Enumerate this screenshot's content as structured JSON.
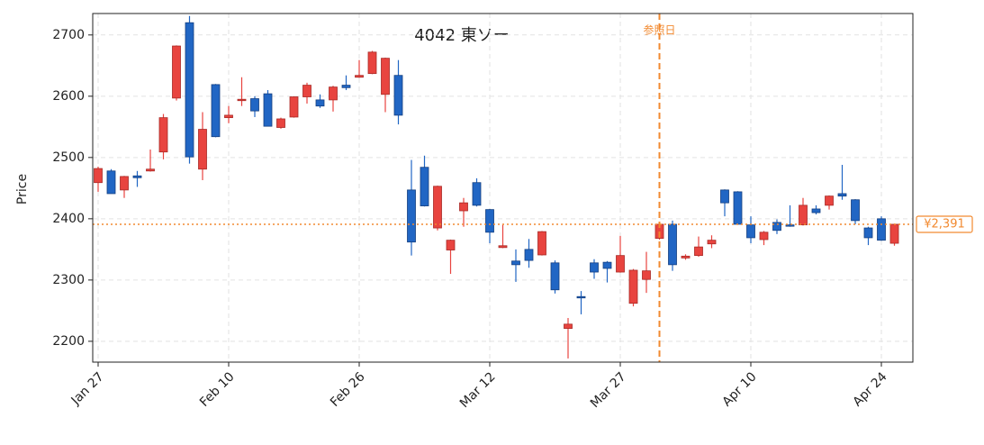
{
  "chart_data": {
    "type": "candlestick",
    "title": "4042  東ソー",
    "y_label": "Price",
    "categories": [
      "Jan 27",
      null,
      null,
      null,
      null,
      null,
      null,
      null,
      null,
      null,
      "Feb 10",
      null,
      null,
      null,
      null,
      null,
      null,
      null,
      null,
      null,
      "Feb 26",
      null,
      null,
      null,
      null,
      null,
      null,
      null,
      null,
      null,
      "Mar 12",
      null,
      null,
      null,
      null,
      null,
      null,
      null,
      null,
      null,
      "Mar 27",
      null,
      null,
      null,
      null,
      null,
      null,
      null,
      null,
      null,
      "Apr 10",
      null,
      null,
      null,
      null,
      null,
      null,
      null,
      null,
      null,
      "Apr 24",
      null
    ],
    "open": [
      2459,
      2478,
      2447,
      2470,
      2478,
      2509,
      2597,
      2720,
      2481,
      2619,
      2565,
      2593,
      2596,
      2604,
      2549,
      2566,
      2599,
      2594,
      2594,
      2618,
      2631,
      2637,
      2603,
      2634,
      2447,
      2484,
      2385,
      2349,
      2413,
      2459,
      2415,
      2353,
      2331,
      2350,
      2341,
      2328,
      2221,
      2273,
      2328,
      2329,
      2313,
      2262,
      2301,
      2368,
      2391,
      2336,
      2340,
      2359,
      2447,
      2444,
      2390,
      2366,
      2394,
      2390,
      2390,
      2416,
      2422,
      2441,
      2431,
      2385,
      2400,
      2360
    ],
    "high": [
      2485,
      2481,
      2470,
      2478,
      2513,
      2571,
      2683,
      2731,
      2574,
      2620,
      2584,
      2631,
      2600,
      2610,
      2565,
      2600,
      2622,
      2603,
      2617,
      2634,
      2659,
      2674,
      2663,
      2659,
      2496,
      2503,
      2454,
      2366,
      2434,
      2466,
      2416,
      2390,
      2350,
      2367,
      2380,
      2332,
      2238,
      2282,
      2334,
      2331,
      2372,
      2318,
      2346,
      2392,
      2397,
      2342,
      2371,
      2373,
      2448,
      2445,
      2404,
      2380,
      2399,
      2422,
      2434,
      2422,
      2438,
      2488,
      2432,
      2387,
      2404,
      2392
    ],
    "low": [
      2444,
      2441,
      2434,
      2452,
      2477,
      2497,
      2593,
      2490,
      2463,
      2533,
      2556,
      2584,
      2566,
      2551,
      2547,
      2565,
      2588,
      2581,
      2575,
      2610,
      2630,
      2636,
      2574,
      2554,
      2340,
      2420,
      2381,
      2310,
      2387,
      2420,
      2360,
      2352,
      2297,
      2320,
      2340,
      2278,
      2172,
      2244,
      2302,
      2296,
      2312,
      2257,
      2279,
      2366,
      2315,
      2333,
      2338,
      2352,
      2404,
      2390,
      2360,
      2357,
      2375,
      2387,
      2389,
      2407,
      2415,
      2431,
      2391,
      2357,
      2364,
      2356
    ],
    "close": [
      2482,
      2441,
      2469,
      2467,
      2481,
      2565,
      2682,
      2501,
      2546,
      2534,
      2569,
      2595,
      2576,
      2551,
      2563,
      2599,
      2618,
      2584,
      2615,
      2614,
      2634,
      2672,
      2662,
      2569,
      2362,
      2421,
      2453,
      2365,
      2426,
      2422,
      2378,
      2356,
      2325,
      2332,
      2379,
      2284,
      2228,
      2271,
      2313,
      2319,
      2340,
      2316,
      2315,
      2391,
      2325,
      2339,
      2354,
      2365,
      2426,
      2391,
      2369,
      2378,
      2381,
      2388,
      2422,
      2410,
      2437,
      2437,
      2397,
      2369,
      2365,
      2391
    ],
    "up_color": "#e8443f",
    "down_color": "#2166c4",
    "ylim": [
      2166,
      2735
    ],
    "yticks": [
      2200,
      2300,
      2400,
      2500,
      2600,
      2700
    ],
    "grid": true,
    "reference_line": {
      "value": 2391,
      "label": "¥2,391",
      "color": "#f28a30"
    },
    "reference_date": {
      "index": 43,
      "label": "参照日",
      "color": "#f28a30"
    }
  }
}
